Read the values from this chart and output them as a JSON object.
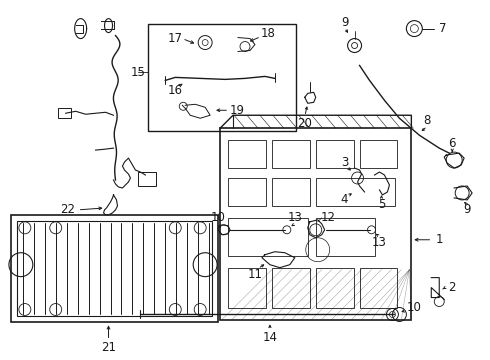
{
  "bg_color": "#ffffff",
  "lc": "#1a1a1a",
  "fs": 8.5,
  "figsize": [
    4.9,
    3.6
  ],
  "dpi": 100
}
